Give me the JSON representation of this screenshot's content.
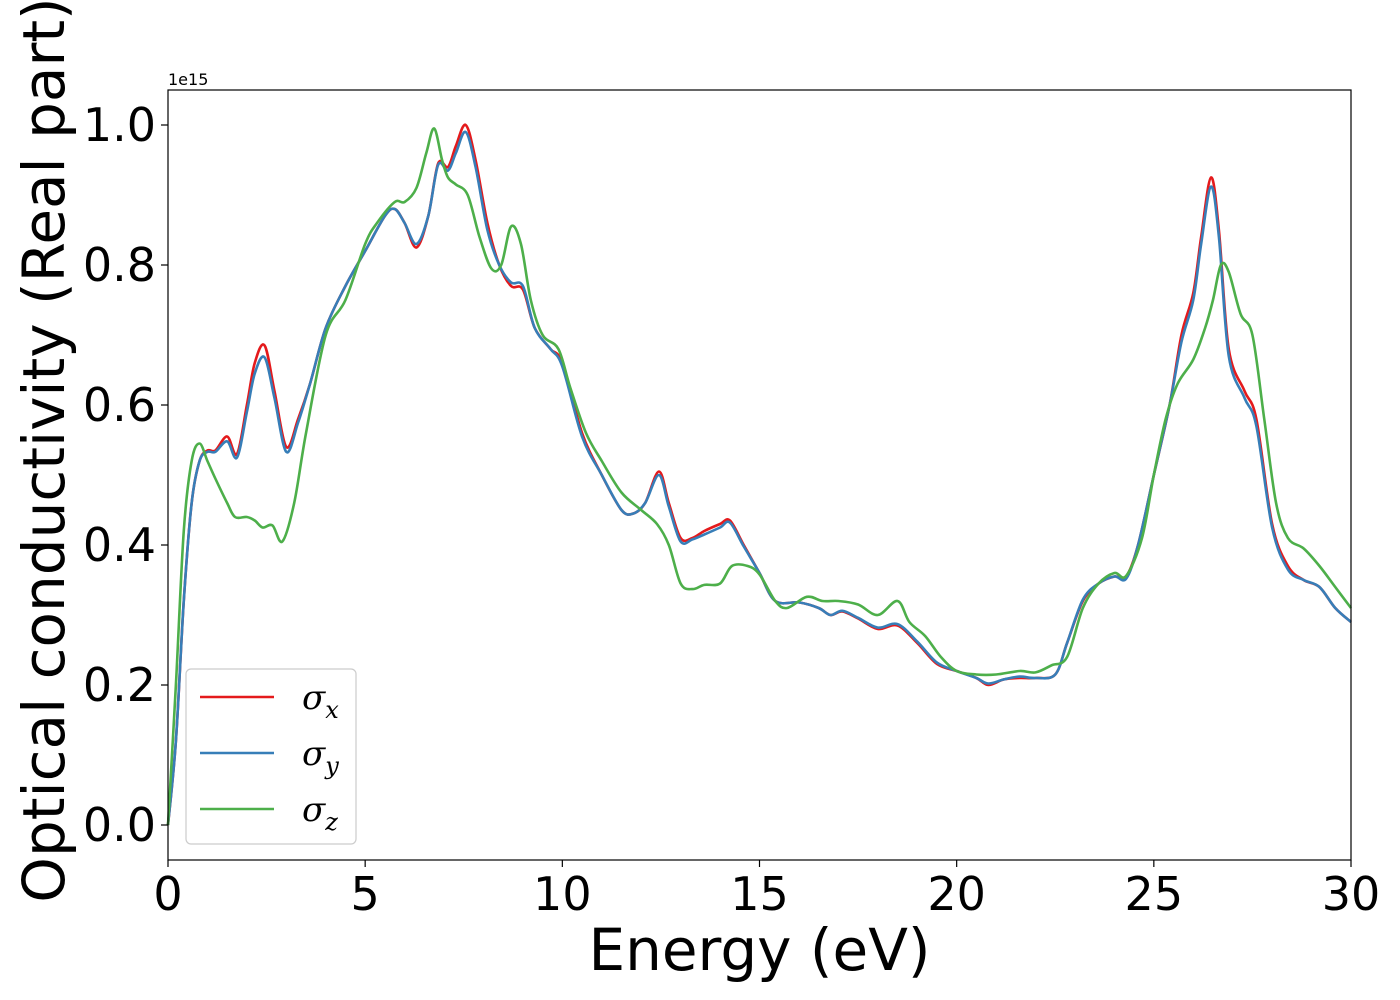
{
  "chart_data": {
    "type": "line",
    "xlabel": "Energy (eV)",
    "ylabel": "Optical conductivity (Real part)",
    "y_offset_label": "1e15",
    "xlim": [
      0,
      30
    ],
    "ylim": [
      -0.05,
      1.05
    ],
    "xticks": [
      0,
      5,
      10,
      15,
      20,
      25,
      30
    ],
    "yticks": [
      0.0,
      0.2,
      0.4,
      0.6,
      0.8,
      1.0
    ],
    "xtick_labels": [
      "0",
      "5",
      "10",
      "15",
      "20",
      "25",
      "30"
    ],
    "ytick_labels": [
      "0.0",
      "0.2",
      "0.4",
      "0.6",
      "0.8",
      "1.0"
    ],
    "grid": false,
    "legend_position": "lower-left",
    "series": [
      {
        "name": "σx",
        "label_base": "σ",
        "label_sub": "x",
        "color": "#e41a1c",
        "points": [
          [
            0,
            0.0
          ],
          [
            0.2,
            0.12
          ],
          [
            0.4,
            0.32
          ],
          [
            0.6,
            0.46
          ],
          [
            0.8,
            0.52
          ],
          [
            1.0,
            0.535
          ],
          [
            1.2,
            0.535
          ],
          [
            1.5,
            0.555
          ],
          [
            1.75,
            0.53
          ],
          [
            2.0,
            0.6
          ],
          [
            2.2,
            0.66
          ],
          [
            2.45,
            0.685
          ],
          [
            2.7,
            0.62
          ],
          [
            3.0,
            0.54
          ],
          [
            3.3,
            0.58
          ],
          [
            3.6,
            0.63
          ],
          [
            4.0,
            0.71
          ],
          [
            4.5,
            0.77
          ],
          [
            5.0,
            0.82
          ],
          [
            5.5,
            0.87
          ],
          [
            5.75,
            0.88
          ],
          [
            6.0,
            0.86
          ],
          [
            6.3,
            0.825
          ],
          [
            6.6,
            0.87
          ],
          [
            6.85,
            0.945
          ],
          [
            7.1,
            0.94
          ],
          [
            7.3,
            0.97
          ],
          [
            7.55,
            1.0
          ],
          [
            7.8,
            0.95
          ],
          [
            8.1,
            0.86
          ],
          [
            8.4,
            0.8
          ],
          [
            8.7,
            0.77
          ],
          [
            9.0,
            0.765
          ],
          [
            9.3,
            0.71
          ],
          [
            9.7,
            0.68
          ],
          [
            10.0,
            0.66
          ],
          [
            10.5,
            0.56
          ],
          [
            11.0,
            0.5
          ],
          [
            11.5,
            0.45
          ],
          [
            11.8,
            0.445
          ],
          [
            12.1,
            0.46
          ],
          [
            12.45,
            0.505
          ],
          [
            12.7,
            0.46
          ],
          [
            13.0,
            0.41
          ],
          [
            13.3,
            0.41
          ],
          [
            13.6,
            0.42
          ],
          [
            14.0,
            0.43
          ],
          [
            14.25,
            0.435
          ],
          [
            14.6,
            0.4
          ],
          [
            15.0,
            0.36
          ],
          [
            15.4,
            0.32
          ],
          [
            16.0,
            0.318
          ],
          [
            16.5,
            0.31
          ],
          [
            16.8,
            0.3
          ],
          [
            17.1,
            0.305
          ],
          [
            17.5,
            0.295
          ],
          [
            18.0,
            0.28
          ],
          [
            18.5,
            0.285
          ],
          [
            19.0,
            0.26
          ],
          [
            19.5,
            0.23
          ],
          [
            20.0,
            0.22
          ],
          [
            20.5,
            0.21
          ],
          [
            20.8,
            0.2
          ],
          [
            21.2,
            0.208
          ],
          [
            21.6,
            0.21
          ],
          [
            22.0,
            0.21
          ],
          [
            22.5,
            0.215
          ],
          [
            22.8,
            0.26
          ],
          [
            23.2,
            0.32
          ],
          [
            23.6,
            0.345
          ],
          [
            24.0,
            0.355
          ],
          [
            24.3,
            0.355
          ],
          [
            24.6,
            0.4
          ],
          [
            25.0,
            0.5
          ],
          [
            25.4,
            0.6
          ],
          [
            25.7,
            0.7
          ],
          [
            26.0,
            0.76
          ],
          [
            26.2,
            0.84
          ],
          [
            26.45,
            0.925
          ],
          [
            26.65,
            0.85
          ],
          [
            26.9,
            0.68
          ],
          [
            27.3,
            0.62
          ],
          [
            27.6,
            0.58
          ],
          [
            28.0,
            0.43
          ],
          [
            28.4,
            0.37
          ],
          [
            28.8,
            0.35
          ],
          [
            29.2,
            0.34
          ],
          [
            29.6,
            0.31
          ],
          [
            30.0,
            0.29
          ]
        ]
      },
      {
        "name": "σy",
        "label_base": "σ",
        "label_sub": "y",
        "color": "#377eb8",
        "points": [
          [
            0,
            0.0
          ],
          [
            0.2,
            0.12
          ],
          [
            0.4,
            0.32
          ],
          [
            0.6,
            0.46
          ],
          [
            0.8,
            0.52
          ],
          [
            1.0,
            0.533
          ],
          [
            1.2,
            0.533
          ],
          [
            1.5,
            0.548
          ],
          [
            1.75,
            0.525
          ],
          [
            2.0,
            0.59
          ],
          [
            2.2,
            0.645
          ],
          [
            2.45,
            0.668
          ],
          [
            2.7,
            0.61
          ],
          [
            3.0,
            0.533
          ],
          [
            3.3,
            0.575
          ],
          [
            3.6,
            0.63
          ],
          [
            4.0,
            0.71
          ],
          [
            4.5,
            0.77
          ],
          [
            5.0,
            0.82
          ],
          [
            5.5,
            0.87
          ],
          [
            5.75,
            0.88
          ],
          [
            6.0,
            0.86
          ],
          [
            6.3,
            0.83
          ],
          [
            6.6,
            0.87
          ],
          [
            6.85,
            0.943
          ],
          [
            7.1,
            0.935
          ],
          [
            7.3,
            0.96
          ],
          [
            7.55,
            0.99
          ],
          [
            7.8,
            0.94
          ],
          [
            8.1,
            0.85
          ],
          [
            8.4,
            0.8
          ],
          [
            8.7,
            0.775
          ],
          [
            9.0,
            0.77
          ],
          [
            9.3,
            0.71
          ],
          [
            9.7,
            0.68
          ],
          [
            10.0,
            0.655
          ],
          [
            10.5,
            0.555
          ],
          [
            11.0,
            0.5
          ],
          [
            11.5,
            0.45
          ],
          [
            11.8,
            0.445
          ],
          [
            12.1,
            0.46
          ],
          [
            12.45,
            0.5
          ],
          [
            12.7,
            0.455
          ],
          [
            13.0,
            0.405
          ],
          [
            13.3,
            0.408
          ],
          [
            13.6,
            0.415
          ],
          [
            14.0,
            0.425
          ],
          [
            14.25,
            0.432
          ],
          [
            14.6,
            0.398
          ],
          [
            15.0,
            0.36
          ],
          [
            15.4,
            0.32
          ],
          [
            16.0,
            0.318
          ],
          [
            16.5,
            0.31
          ],
          [
            16.8,
            0.3
          ],
          [
            17.1,
            0.306
          ],
          [
            17.5,
            0.296
          ],
          [
            18.0,
            0.282
          ],
          [
            18.5,
            0.287
          ],
          [
            19.0,
            0.262
          ],
          [
            19.5,
            0.232
          ],
          [
            20.0,
            0.22
          ],
          [
            20.5,
            0.21
          ],
          [
            20.8,
            0.202
          ],
          [
            21.2,
            0.208
          ],
          [
            21.6,
            0.212
          ],
          [
            22.0,
            0.21
          ],
          [
            22.5,
            0.215
          ],
          [
            22.8,
            0.26
          ],
          [
            23.2,
            0.322
          ],
          [
            23.6,
            0.345
          ],
          [
            24.0,
            0.355
          ],
          [
            24.3,
            0.352
          ],
          [
            24.6,
            0.4
          ],
          [
            25.0,
            0.5
          ],
          [
            25.4,
            0.6
          ],
          [
            25.7,
            0.69
          ],
          [
            26.0,
            0.75
          ],
          [
            26.2,
            0.83
          ],
          [
            26.45,
            0.912
          ],
          [
            26.65,
            0.84
          ],
          [
            26.9,
            0.67
          ],
          [
            27.3,
            0.61
          ],
          [
            27.6,
            0.57
          ],
          [
            28.0,
            0.425
          ],
          [
            28.4,
            0.365
          ],
          [
            28.8,
            0.35
          ],
          [
            29.2,
            0.34
          ],
          [
            29.6,
            0.31
          ],
          [
            30.0,
            0.29
          ]
        ]
      },
      {
        "name": "σz",
        "label_base": "σ",
        "label_sub": "z",
        "color": "#4daf4a",
        "points": [
          [
            0,
            0.0
          ],
          [
            0.2,
            0.2
          ],
          [
            0.4,
            0.42
          ],
          [
            0.6,
            0.52
          ],
          [
            0.8,
            0.545
          ],
          [
            1.0,
            0.52
          ],
          [
            1.2,
            0.495
          ],
          [
            1.5,
            0.46
          ],
          [
            1.7,
            0.44
          ],
          [
            2.0,
            0.44
          ],
          [
            2.2,
            0.435
          ],
          [
            2.4,
            0.425
          ],
          [
            2.65,
            0.428
          ],
          [
            2.9,
            0.405
          ],
          [
            3.2,
            0.46
          ],
          [
            3.5,
            0.56
          ],
          [
            4.0,
            0.7
          ],
          [
            4.5,
            0.75
          ],
          [
            5.0,
            0.83
          ],
          [
            5.3,
            0.86
          ],
          [
            5.75,
            0.89
          ],
          [
            6.0,
            0.89
          ],
          [
            6.3,
            0.91
          ],
          [
            6.55,
            0.96
          ],
          [
            6.75,
            0.995
          ],
          [
            6.95,
            0.95
          ],
          [
            7.1,
            0.925
          ],
          [
            7.3,
            0.915
          ],
          [
            7.6,
            0.9
          ],
          [
            7.9,
            0.84
          ],
          [
            8.2,
            0.795
          ],
          [
            8.45,
            0.8
          ],
          [
            8.7,
            0.855
          ],
          [
            8.95,
            0.83
          ],
          [
            9.2,
            0.75
          ],
          [
            9.5,
            0.7
          ],
          [
            9.9,
            0.68
          ],
          [
            10.2,
            0.625
          ],
          [
            10.6,
            0.56
          ],
          [
            11.0,
            0.52
          ],
          [
            11.5,
            0.475
          ],
          [
            12.0,
            0.45
          ],
          [
            12.4,
            0.43
          ],
          [
            12.7,
            0.4
          ],
          [
            13.0,
            0.345
          ],
          [
            13.3,
            0.337
          ],
          [
            13.6,
            0.343
          ],
          [
            14.0,
            0.345
          ],
          [
            14.3,
            0.37
          ],
          [
            14.7,
            0.37
          ],
          [
            15.0,
            0.358
          ],
          [
            15.4,
            0.32
          ],
          [
            15.7,
            0.31
          ],
          [
            16.2,
            0.326
          ],
          [
            16.6,
            0.32
          ],
          [
            17.0,
            0.32
          ],
          [
            17.5,
            0.315
          ],
          [
            18.0,
            0.3
          ],
          [
            18.5,
            0.32
          ],
          [
            18.8,
            0.29
          ],
          [
            19.2,
            0.27
          ],
          [
            19.6,
            0.24
          ],
          [
            20.0,
            0.22
          ],
          [
            20.5,
            0.215
          ],
          [
            21.0,
            0.215
          ],
          [
            21.6,
            0.22
          ],
          [
            22.0,
            0.218
          ],
          [
            22.4,
            0.228
          ],
          [
            22.8,
            0.24
          ],
          [
            23.2,
            0.31
          ],
          [
            23.6,
            0.345
          ],
          [
            24.0,
            0.36
          ],
          [
            24.3,
            0.356
          ],
          [
            24.7,
            0.41
          ],
          [
            25.0,
            0.5
          ],
          [
            25.3,
            0.58
          ],
          [
            25.6,
            0.63
          ],
          [
            26.0,
            0.665
          ],
          [
            26.3,
            0.71
          ],
          [
            26.5,
            0.75
          ],
          [
            26.7,
            0.8
          ],
          [
            26.9,
            0.79
          ],
          [
            27.2,
            0.73
          ],
          [
            27.5,
            0.7
          ],
          [
            27.8,
            0.58
          ],
          [
            28.1,
            0.46
          ],
          [
            28.4,
            0.41
          ],
          [
            28.8,
            0.395
          ],
          [
            29.2,
            0.37
          ],
          [
            29.6,
            0.34
          ],
          [
            30.0,
            0.31
          ]
        ]
      }
    ]
  }
}
